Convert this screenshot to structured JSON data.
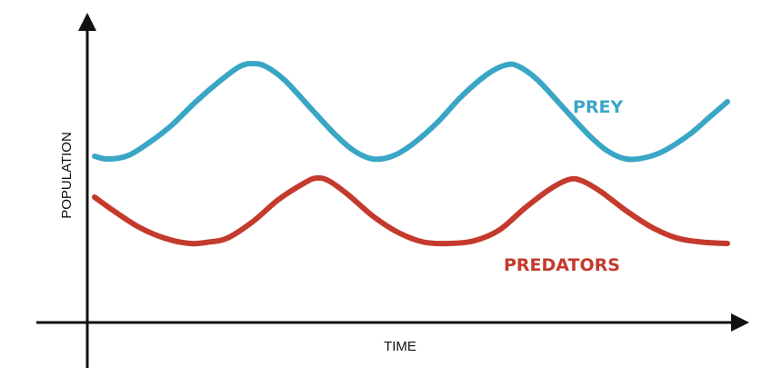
{
  "chart_data": {
    "type": "line",
    "title": "",
    "xlabel": "TIME",
    "ylabel": "POPULATION",
    "x_ticks_shown": false,
    "y_ticks_shown": false,
    "grid": false,
    "legend": "inline labels next to lines",
    "xlim": [
      0,
      100
    ],
    "ylim": [
      0,
      100
    ],
    "series": [
      {
        "name": "PREY",
        "color": "#3aa6c6",
        "label_placement": "above-right of second prey peak",
        "points": [
          [
            0,
            56
          ],
          [
            2,
            55
          ],
          [
            5,
            56
          ],
          [
            8,
            60
          ],
          [
            12,
            67
          ],
          [
            16,
            76
          ],
          [
            20,
            84
          ],
          [
            23,
            89
          ],
          [
            25,
            90
          ],
          [
            27,
            89
          ],
          [
            30,
            84
          ],
          [
            34,
            74
          ],
          [
            38,
            64
          ],
          [
            41,
            58
          ],
          [
            44,
            55
          ],
          [
            47,
            56
          ],
          [
            50,
            60
          ],
          [
            54,
            68
          ],
          [
            58,
            78
          ],
          [
            62,
            86
          ],
          [
            65,
            89.5
          ],
          [
            67,
            89
          ],
          [
            70,
            84
          ],
          [
            74,
            74
          ],
          [
            78,
            64
          ],
          [
            81,
            58
          ],
          [
            84,
            55
          ],
          [
            87,
            55.5
          ],
          [
            90,
            58
          ],
          [
            94,
            64
          ],
          [
            97,
            70
          ],
          [
            100,
            76
          ]
        ]
      },
      {
        "name": "PREDATORS",
        "color": "#c43a2c",
        "label_placement": "right of predator trough",
        "points": [
          [
            0,
            41
          ],
          [
            3,
            36
          ],
          [
            7,
            30
          ],
          [
            11,
            26
          ],
          [
            15,
            24
          ],
          [
            18,
            24.5
          ],
          [
            21,
            26
          ],
          [
            25,
            32
          ],
          [
            29,
            40
          ],
          [
            33,
            46
          ],
          [
            35,
            48
          ],
          [
            37,
            47
          ],
          [
            40,
            42
          ],
          [
            44,
            34
          ],
          [
            48,
            28
          ],
          [
            52,
            24.5
          ],
          [
            56,
            24
          ],
          [
            60,
            25
          ],
          [
            64,
            29
          ],
          [
            68,
            37
          ],
          [
            72,
            44
          ],
          [
            75,
            47.5
          ],
          [
            77,
            47
          ],
          [
            80,
            43
          ],
          [
            84,
            36
          ],
          [
            88,
            30
          ],
          [
            92,
            26
          ],
          [
            96,
            24.5
          ],
          [
            100,
            24
          ]
        ]
      }
    ]
  }
}
